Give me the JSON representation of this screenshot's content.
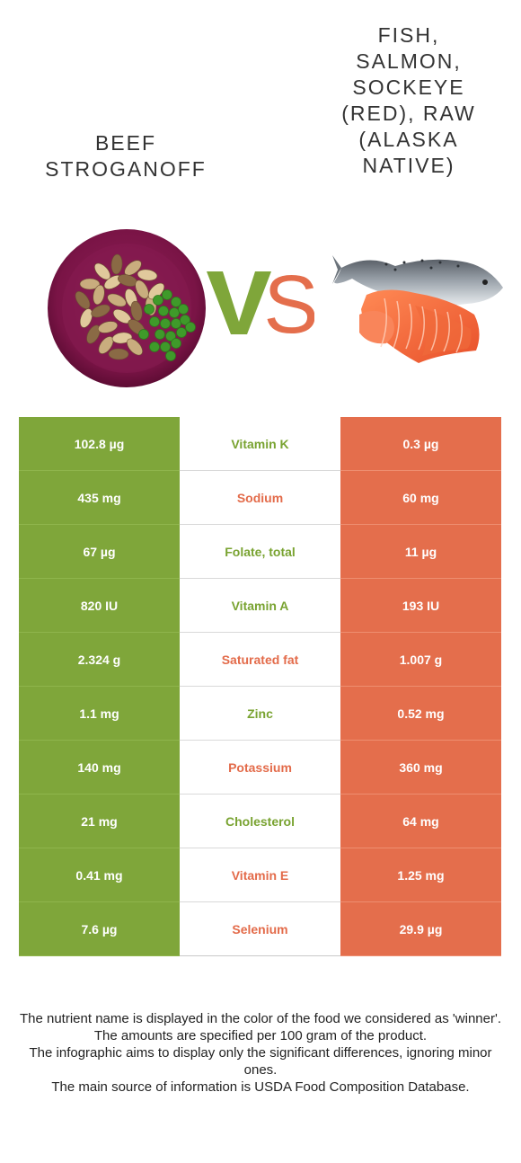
{
  "left_food": {
    "title": "Beef\nStroganoff",
    "color": "#7fa63a"
  },
  "right_food": {
    "title": "Fish,\nSalmon,\nSockeye\n(red), raw\n(Alaska\nNative)",
    "color": "#e46e4c"
  },
  "vs": {
    "v_color": "#7fa63a",
    "s_color": "#e46e4c"
  },
  "rows": [
    {
      "left": "102.8 µg",
      "nutrient": "Vitamin K",
      "right": "0.3 µg",
      "winner": "left"
    },
    {
      "left": "435 mg",
      "nutrient": "Sodium",
      "right": "60 mg",
      "winner": "right"
    },
    {
      "left": "67 µg",
      "nutrient": "Folate, total",
      "right": "11 µg",
      "winner": "left"
    },
    {
      "left": "820 IU",
      "nutrient": "Vitamin A",
      "right": "193 IU",
      "winner": "left"
    },
    {
      "left": "2.324 g",
      "nutrient": "Saturated fat",
      "right": "1.007 g",
      "winner": "right"
    },
    {
      "left": "1.1 mg",
      "nutrient": "Zinc",
      "right": "0.52 mg",
      "winner": "left"
    },
    {
      "left": "140 mg",
      "nutrient": "Potassium",
      "right": "360 mg",
      "winner": "right"
    },
    {
      "left": "21 mg",
      "nutrient": "Cholesterol",
      "right": "64 mg",
      "winner": "left"
    },
    {
      "left": "0.41 mg",
      "nutrient": "Vitamin E",
      "right": "1.25 mg",
      "winner": "right"
    },
    {
      "left": "7.6 µg",
      "nutrient": "Selenium",
      "right": "29.9 µg",
      "winner": "right"
    }
  ],
  "notes": [
    "The nutrient name is displayed in the color of the food we considered as 'winner'.",
    "The amounts are specified per 100 gram of the product.",
    "The infographic aims to display only the significant differences, ignoring minor ones.",
    "The main source of information is USDA Food Composition Database."
  ]
}
